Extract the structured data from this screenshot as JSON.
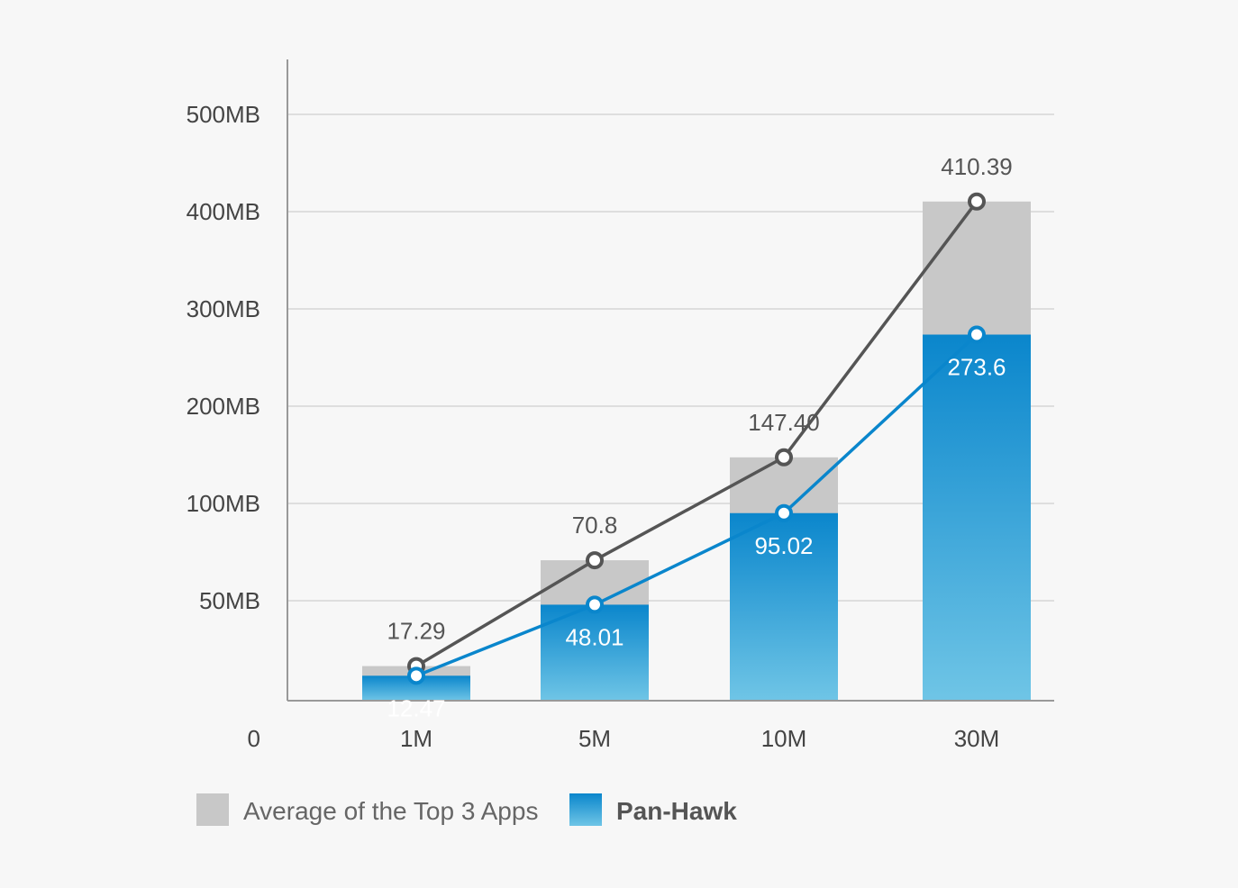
{
  "chart_data": {
    "type": "bar",
    "categories": [
      "1M",
      "5M",
      "10M",
      "30M"
    ],
    "y_ticks": [
      "0",
      "50MB",
      "100MB",
      "200MB",
      "300MB",
      "400MB",
      "500MB"
    ],
    "y_scale_note_values": [
      0,
      50,
      100,
      200,
      300,
      400,
      500
    ],
    "series": [
      {
        "name": "Average of the Top 3 Apps",
        "bar_values": [
          17.29,
          70.8,
          147.4,
          410.39
        ],
        "labels": [
          "17.29",
          "70.8",
          "147.40",
          "410.39"
        ],
        "color": "#c8c8c8",
        "line_color": "#555555"
      },
      {
        "name": "Pan-Hawk",
        "bar_values": [
          12.47,
          48.01,
          95.02,
          273.6
        ],
        "labels": [
          "12.47",
          "48.01",
          "95.02",
          "273.6"
        ],
        "color": "#0a86cc",
        "line_color": "#0a86cc"
      }
    ],
    "legend": {
      "position": "bottom-left",
      "items": [
        "Average of the Top 3 Apps",
        "Pan-Hawk"
      ]
    },
    "grid": true
  }
}
